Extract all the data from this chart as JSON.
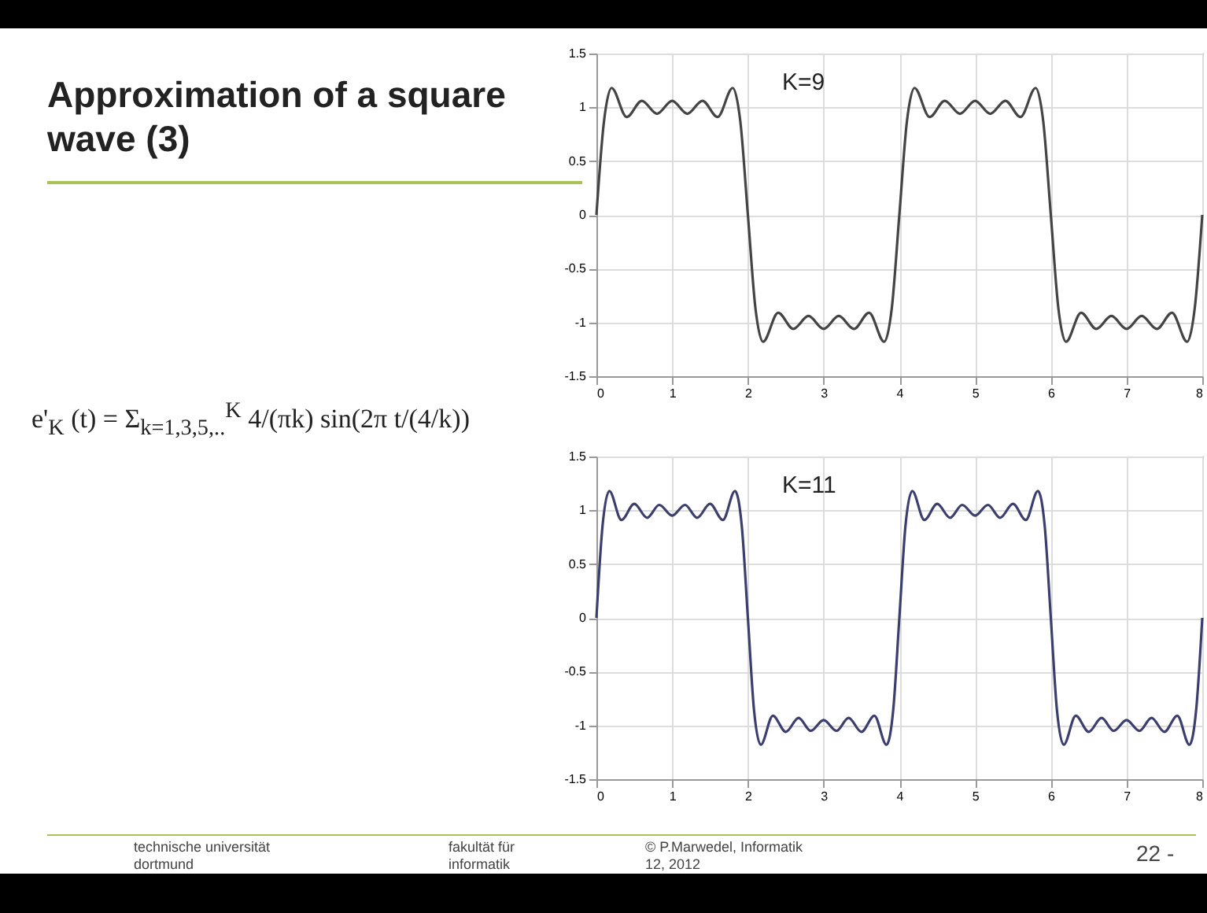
{
  "chart_data": [
    {
      "type": "line",
      "title": "Approximation of a square wave (3)",
      "annotations": [
        "K=9",
        "e'$_{K}$ (t) = Σ$_{k=1,3,5,..}$$^{K}$ 4/(πk) sin(2π t/(4/k))"
      ],
      "series": [
        {
          "color": "#444444",
          "x": [
            0,
            0.1,
            0.2,
            0.4,
            0.6,
            0.8,
            1.0,
            1.2,
            1.4,
            1.6,
            1.8,
            1.9,
            2.0,
            2.1,
            2.2,
            2.4,
            2.6,
            2.8,
            3.0,
            3.2,
            3.4,
            3.6,
            3.8,
            3.9,
            4.0,
            4.1,
            4.2,
            4.4,
            4.6,
            4.8,
            5.0,
            5.2,
            5.4,
            5.6,
            5.8,
            5.9,
            6.0,
            6.1,
            6.2,
            6.4,
            6.6,
            6.8,
            7.0,
            7.2,
            7.4,
            7.6,
            7.8,
            7.9,
            8.0
          ],
          "values": [
            0,
            0.87,
            1.18,
            0.91,
            1.06,
            0.94,
            1.06,
            0.94,
            1.06,
            0.91,
            1.18,
            0.87,
            0,
            -0.87,
            -1.18,
            -0.91,
            -1.06,
            -0.94,
            -1.06,
            -0.94,
            -1.06,
            -0.91,
            -1.18,
            -0.87,
            0,
            0.87,
            1.18,
            0.91,
            1.06,
            0.94,
            1.06,
            0.94,
            1.06,
            0.91,
            1.18,
            0.87,
            0,
            -0.87,
            -1.18,
            -0.91,
            -1.06,
            -0.94,
            -1.06,
            -0.94,
            -1.06,
            -0.91,
            -1.18,
            -0.87,
            0
          ]
        }
      ],
      "xlim": [
        0,
        8
      ],
      "xticks": [
        0,
        1,
        2,
        3,
        4,
        5,
        6,
        7,
        8
      ],
      "ylim": [
        -1.5,
        1.5
      ],
      "yticks": [
        -1.5,
        -1,
        -0.5,
        0,
        0.5,
        1,
        1.5
      ],
      "grid": true,
      "line_style": "solid"
    },
    {
      "type": "line",
      "annotations": [
        "K=11",
        "technische universität dortmund",
        "fakultät für informatik",
        "© P.Marwedel, Informatik 12, 2012",
        "22 -"
      ],
      "series": [
        {
          "color": "#3c3f6e",
          "x": [
            0,
            0.08,
            0.17,
            0.33,
            0.5,
            0.67,
            0.83,
            1.0,
            1.17,
            1.33,
            1.5,
            1.67,
            1.83,
            1.92,
            2.0,
            2.08,
            2.17,
            2.33,
            2.5,
            2.67,
            2.83,
            3.0,
            3.17,
            3.33,
            3.5,
            3.67,
            3.83,
            3.92,
            4.0,
            4.08,
            4.17,
            4.33,
            4.5,
            4.67,
            4.83,
            5.0,
            5.17,
            5.33,
            5.5,
            5.67,
            5.83,
            5.92,
            6.0,
            6.08,
            6.17,
            6.33,
            6.5,
            6.67,
            6.83,
            7.0,
            7.17,
            7.33,
            7.5,
            7.67,
            7.83,
            7.92,
            8.0
          ],
          "values": [
            0,
            0.85,
            1.18,
            0.91,
            1.06,
            0.93,
            1.05,
            0.95,
            1.05,
            0.93,
            1.06,
            0.91,
            1.18,
            0.85,
            0,
            -0.85,
            -1.18,
            -0.91,
            -1.06,
            -0.93,
            -1.05,
            -0.95,
            -1.05,
            -0.93,
            -1.06,
            -0.91,
            -1.18,
            -0.85,
            0,
            0.85,
            1.18,
            0.91,
            1.06,
            0.93,
            1.05,
            0.95,
            1.05,
            0.93,
            1.06,
            0.91,
            1.18,
            0.85,
            0,
            -0.85,
            -1.18,
            -0.91,
            -1.06,
            -0.93,
            -1.05,
            -0.95,
            -1.05,
            -0.93,
            -1.06,
            -0.91,
            -1.18,
            -0.85,
            0
          ]
        }
      ],
      "xlim": [
        0,
        8
      ],
      "xticks": [
        0,
        1,
        2,
        3,
        4,
        5,
        6,
        7,
        8
      ],
      "ylim": [
        -1.5,
        1.5
      ],
      "yticks": [
        -1.5,
        -1,
        -0.5,
        0,
        0.5,
        1,
        1.5
      ],
      "grid": true,
      "line_style": "solid"
    }
  ]
}
